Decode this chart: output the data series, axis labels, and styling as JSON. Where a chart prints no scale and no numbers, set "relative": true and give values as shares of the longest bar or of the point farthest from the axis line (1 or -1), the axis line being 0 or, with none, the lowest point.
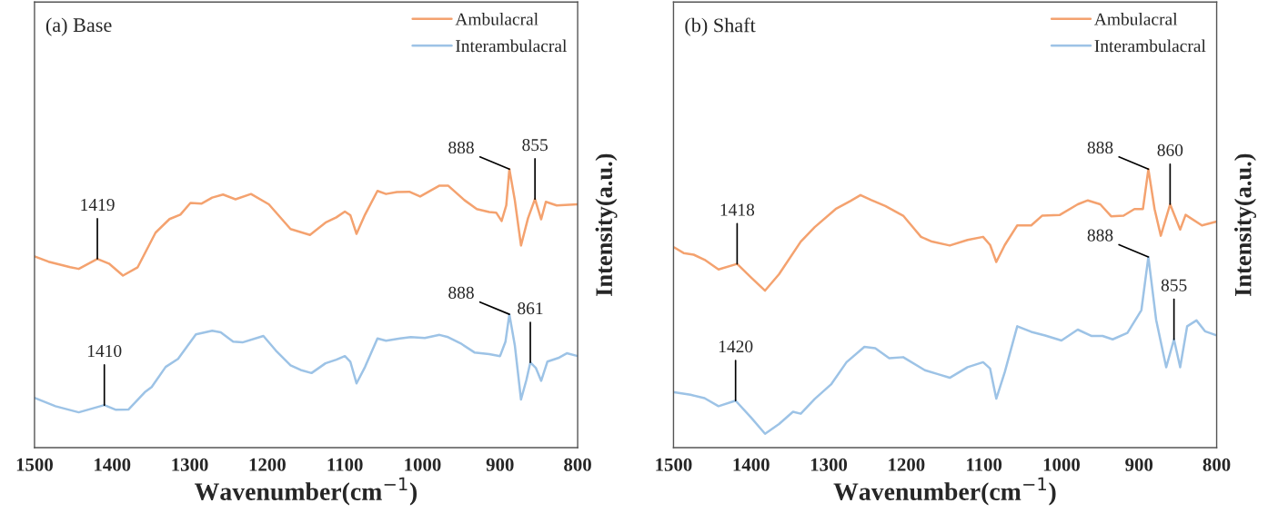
{
  "chart_data": [
    {
      "type": "line",
      "title": "(a) Base",
      "xlabel": "Wavenumber(cm$^{−1}$)",
      "ylabel": "Intensity(a.u.)",
      "relative": true,
      "legend": "top right",
      "tick_labels": "x",
      "grid": false,
      "xlim": [
        1500,
        800
      ],
      "xticks": [
        1500,
        1400,
        1300,
        1200,
        1100,
        1000,
        900,
        800
      ],
      "series": [
        {
          "name": "Ambulacral",
          "color": "#f4a26f",
          "x": [
            1500,
            1482,
            1454,
            1443,
            1419,
            1404,
            1386,
            1367,
            1344,
            1326,
            1312,
            1299,
            1285,
            1271,
            1257,
            1241,
            1221,
            1198,
            1170,
            1145,
            1125,
            1111,
            1100,
            1093,
            1085,
            1074,
            1058,
            1047,
            1033,
            1017,
            1003,
            978,
            967,
            946,
            930,
            914,
            905,
            898,
            892,
            888,
            881,
            873,
            864,
            855,
            847,
            841,
            827,
            800
          ],
          "values": [
            0.687,
            0.668,
            0.648,
            0.642,
            0.678,
            0.661,
            0.618,
            0.648,
            0.772,
            0.821,
            0.837,
            0.879,
            0.876,
            0.898,
            0.909,
            0.892,
            0.911,
            0.874,
            0.785,
            0.764,
            0.808,
            0.827,
            0.848,
            0.835,
            0.768,
            0.837,
            0.922,
            0.911,
            0.918,
            0.919,
            0.902,
            0.941,
            0.941,
            0.889,
            0.857,
            0.846,
            0.844,
            0.814,
            0.87,
            1.0,
            0.889,
            0.726,
            0.824,
            0.893,
            0.82,
            0.883,
            0.87,
            0.874
          ]
        },
        {
          "name": "Interambulacral",
          "color": "#9dc3e6",
          "x": [
            1500,
            1473,
            1443,
            1410,
            1395,
            1379,
            1358,
            1349,
            1331,
            1315,
            1292,
            1271,
            1260,
            1244,
            1232,
            1205,
            1189,
            1170,
            1157,
            1143,
            1125,
            1111,
            1100,
            1093,
            1085,
            1074,
            1058,
            1047,
            1029,
            1015,
            997,
            978,
            967,
            951,
            933,
            914,
            900,
            893,
            888,
            881,
            873,
            866,
            861,
            854,
            847,
            839,
            825,
            814,
            800
          ],
          "values": [
            0.179,
            0.149,
            0.127,
            0.153,
            0.136,
            0.137,
            0.199,
            0.218,
            0.29,
            0.319,
            0.407,
            0.42,
            0.414,
            0.381,
            0.378,
            0.401,
            0.349,
            0.296,
            0.279,
            0.268,
            0.303,
            0.316,
            0.329,
            0.309,
            0.231,
            0.29,
            0.392,
            0.384,
            0.392,
            0.397,
            0.394,
            0.405,
            0.397,
            0.375,
            0.342,
            0.336,
            0.329,
            0.381,
            0.479,
            0.368,
            0.173,
            0.244,
            0.306,
            0.287,
            0.24,
            0.309,
            0.322,
            0.339,
            0.329
          ]
        }
      ],
      "annotations": [
        {
          "text": "1419",
          "x": 1419,
          "y": 0.678
        },
        {
          "text": "888",
          "x": 888,
          "y": 1.0
        },
        {
          "text": "855",
          "x": 855,
          "y": 0.893
        },
        {
          "text": "1410",
          "x": 1410,
          "y": 0.153
        },
        {
          "text": "888",
          "x": 888,
          "y": 0.479
        },
        {
          "text": "861",
          "x": 861,
          "y": 0.306
        }
      ]
    },
    {
      "type": "line",
      "title": "(b) Shaft",
      "xlabel": "Wavenumber(cm$^{−1}$)",
      "ylabel": "Intensity(a.u.)",
      "relative": true,
      "legend": "top right",
      "tick_labels": "x",
      "grid": false,
      "xlim": [
        1500,
        800
      ],
      "xticks": [
        1500,
        1400,
        1300,
        1200,
        1100,
        1000,
        900,
        800
      ],
      "series": [
        {
          "name": "Ambulacral",
          "color": "#f4a26f",
          "x": [
            1499,
            1487,
            1474,
            1460,
            1442,
            1418,
            1400,
            1382,
            1364,
            1336,
            1318,
            1291,
            1272,
            1259,
            1245,
            1227,
            1204,
            1181,
            1167,
            1144,
            1121,
            1101,
            1092,
            1084,
            1073,
            1057,
            1039,
            1025,
            1002,
            979,
            966,
            950,
            936,
            920,
            906,
            895,
            888,
            880,
            872,
            860,
            847,
            840,
            819,
            800
          ],
          "values": [
            0.719,
            0.699,
            0.693,
            0.675,
            0.64,
            0.66,
            0.611,
            0.564,
            0.623,
            0.74,
            0.792,
            0.857,
            0.886,
            0.907,
            0.889,
            0.868,
            0.833,
            0.757,
            0.74,
            0.726,
            0.746,
            0.757,
            0.728,
            0.667,
            0.728,
            0.798,
            0.798,
            0.833,
            0.836,
            0.874,
            0.888,
            0.874,
            0.831,
            0.833,
            0.857,
            0.857,
            1.0,
            0.857,
            0.761,
            0.874,
            0.783,
            0.836,
            0.798,
            0.812
          ]
        },
        {
          "name": "Interambulacral",
          "color": "#9dc3e6",
          "x": [
            1499,
            1478,
            1460,
            1442,
            1420,
            1400,
            1382,
            1364,
            1346,
            1336,
            1318,
            1297,
            1277,
            1254,
            1240,
            1222,
            1204,
            1176,
            1158,
            1144,
            1121,
            1101,
            1092,
            1084,
            1073,
            1057,
            1039,
            1021,
            1000,
            979,
            961,
            947,
            934,
            915,
            897,
            888,
            878,
            865,
            855,
            847,
            838,
            826,
            815,
            800
          ],
          "values": [
            0.199,
            0.19,
            0.178,
            0.149,
            0.169,
            0.108,
            0.05,
            0.085,
            0.129,
            0.122,
            0.175,
            0.227,
            0.307,
            0.362,
            0.357,
            0.321,
            0.325,
            0.278,
            0.263,
            0.251,
            0.289,
            0.307,
            0.284,
            0.176,
            0.272,
            0.436,
            0.416,
            0.403,
            0.385,
            0.424,
            0.401,
            0.401,
            0.389,
            0.412,
            0.494,
            0.685,
            0.459,
            0.289,
            0.389,
            0.289,
            0.436,
            0.457,
            0.418,
            0.403
          ]
        }
      ],
      "annotations": [
        {
          "text": "1418",
          "x": 1418,
          "y": 0.66
        },
        {
          "text": "888",
          "x": 888,
          "y": 1.0
        },
        {
          "text": "860",
          "x": 860,
          "y": 0.874
        },
        {
          "text": "888",
          "x": 888,
          "y": 0.685
        },
        {
          "text": "855",
          "x": 855,
          "y": 0.389
        },
        {
          "text": "1420",
          "x": 1420,
          "y": 0.169
        }
      ]
    }
  ]
}
